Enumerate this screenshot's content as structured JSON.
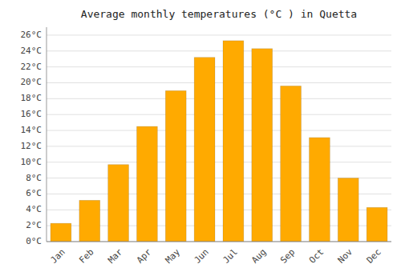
{
  "chart_data": {
    "type": "bar",
    "title": "Average monthly temperatures (°C ) in Quetta",
    "categories": [
      "Jan",
      "Feb",
      "Mar",
      "Apr",
      "May",
      "Jun",
      "Jul",
      "Aug",
      "Sep",
      "Oct",
      "Nov",
      "Dec"
    ],
    "values": [
      2.3,
      5.2,
      9.7,
      14.5,
      19.0,
      23.2,
      25.3,
      24.3,
      19.6,
      13.1,
      8.0,
      4.3
    ],
    "color": "#FFAA00",
    "ylim": [
      0,
      27
    ],
    "yticks": [
      {
        "value": 0,
        "label": "0°C"
      },
      {
        "value": 2,
        "label": "2°C"
      },
      {
        "value": 4,
        "label": "4°C"
      },
      {
        "value": 6,
        "label": "6°C"
      },
      {
        "value": 8,
        "label": "8°C"
      },
      {
        "value": 10,
        "label": "10°C"
      },
      {
        "value": 12,
        "label": "12°C"
      },
      {
        "value": 14,
        "label": "14°C"
      },
      {
        "value": 16,
        "label": "16°C"
      },
      {
        "value": 18,
        "label": "18°C"
      },
      {
        "value": 20,
        "label": "20°C"
      },
      {
        "value": 22,
        "label": "22°C"
      },
      {
        "value": 24,
        "label": "24°C"
      },
      {
        "value": 26,
        "label": "26°C"
      }
    ],
    "grid": true
  }
}
